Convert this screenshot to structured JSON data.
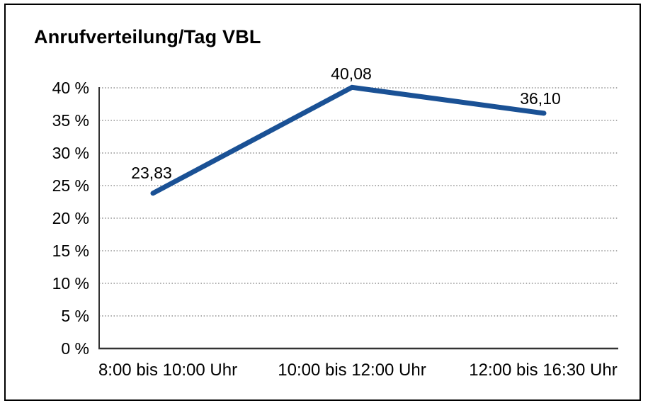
{
  "window": {
    "title": "Anrufverteilung/Tag VBL"
  },
  "chart_data": {
    "type": "line",
    "title": "Anrufverteilung/Tag VBL",
    "categories": [
      "8:00 bis 10:00 Uhr",
      "10:00 bis 12:00 Uhr",
      "12:00 bis 16:30 Uhr"
    ],
    "values": [
      23.83,
      40.08,
      36.1
    ],
    "data_labels": [
      "23,83",
      "40,08",
      "36,10"
    ],
    "xlabel": "",
    "ylabel": "",
    "ylim": [
      0,
      40
    ],
    "y_tick_step": 5,
    "y_tick_labels": [
      "0 %",
      "5 %",
      "10 %",
      "15 %",
      "20 %",
      "25 %",
      "30 %",
      "35 %",
      "40 %"
    ],
    "grid": "horizontal-dotted",
    "legend": "none",
    "colors": {
      "line": "#1a5195",
      "grid": "#7a7a7a",
      "axis": "#333333",
      "text": "#000000",
      "background": "#ffffff",
      "frame_border": "#000000"
    }
  }
}
